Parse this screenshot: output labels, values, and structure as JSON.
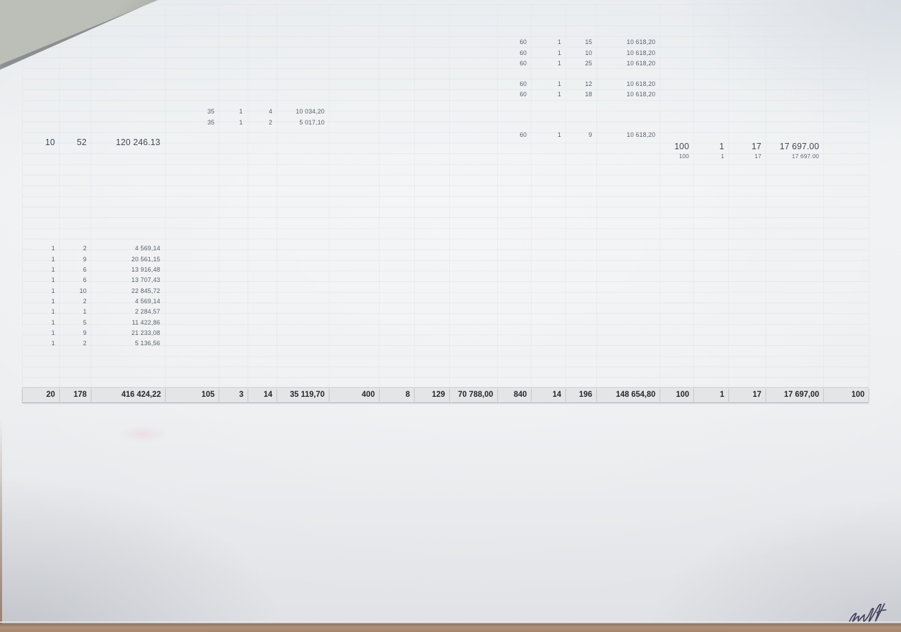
{
  "sheet": {
    "rows": [
      {
        "group": "g4",
        "cells": [
          "60",
          "1",
          "15",
          "10 618,20"
        ]
      },
      {
        "group": "g4",
        "cells": [
          "60",
          "1",
          "10",
          "10 618,20"
        ]
      },
      {
        "group": "g4",
        "cells": [
          "60",
          "1",
          "25",
          "10 618,20"
        ]
      },
      {
        "group": "g4",
        "cells": [
          "60",
          "1",
          "12",
          "10 618,20"
        ]
      },
      {
        "group": "g4",
        "cells": [
          "60",
          "1",
          "18",
          "10 618,20"
        ]
      },
      {
        "group": "g2",
        "cells": [
          "35",
          "1",
          "4",
          "10 034,20"
        ]
      },
      {
        "group": "g2",
        "cells": [
          "35",
          "1",
          "2",
          "5 017,10"
        ]
      },
      {
        "group": "g4",
        "cells": [
          "60",
          "1",
          "9",
          "10 618,20"
        ]
      },
      {
        "group": "g1",
        "cells": [
          "10",
          "52",
          "120 246.13"
        ]
      },
      {
        "group": "g5",
        "cells": [
          "100",
          "1",
          "17",
          "17 697.00"
        ]
      },
      {
        "group": "g5",
        "cells": [
          "100",
          "1",
          "17",
          "17 697.00"
        ]
      },
      {
        "group": "g1",
        "cells": [
          "1",
          "2",
          "4 569,14"
        ]
      },
      {
        "group": "g1",
        "cells": [
          "1",
          "9",
          "20 561,15"
        ]
      },
      {
        "group": "g1",
        "cells": [
          "1",
          "6",
          "13 916,48"
        ]
      },
      {
        "group": "g1",
        "cells": [
          "1",
          "6",
          "13 707,43"
        ]
      },
      {
        "group": "g1",
        "cells": [
          "1",
          "10",
          "22 845,72"
        ]
      },
      {
        "group": "g1",
        "cells": [
          "1",
          "2",
          "4 569,14"
        ]
      },
      {
        "group": "g1",
        "cells": [
          "1",
          "1",
          "2 284,57"
        ]
      },
      {
        "group": "g1",
        "cells": [
          "1",
          "5",
          "11 422,86"
        ]
      },
      {
        "group": "g1",
        "cells": [
          "1",
          "9",
          "21 233,08"
        ]
      },
      {
        "group": "g1",
        "cells": [
          "1",
          "2",
          "5 136,56"
        ]
      }
    ],
    "totals": {
      "cells": [
        "20",
        "178",
        "416 424,22",
        "105",
        "3",
        "14",
        "35 119,70",
        "400",
        "8",
        "129",
        "70 788,00",
        "840",
        "14",
        "196",
        "148 654,80",
        "100",
        "1",
        "17",
        "17 697,00",
        "100"
      ]
    }
  },
  "signature_icon": "handwritten-signature",
  "colors": {
    "paper": "#edeff1",
    "grid": "#dfe3e9",
    "text_faded": "#5a6068",
    "text_dark": "#42474f",
    "totals_text": "#24272c",
    "totals_bg": "#e4e5e7",
    "ink": "#3b3656",
    "desk": "#a8826f",
    "curl": "#bcbfb8"
  }
}
